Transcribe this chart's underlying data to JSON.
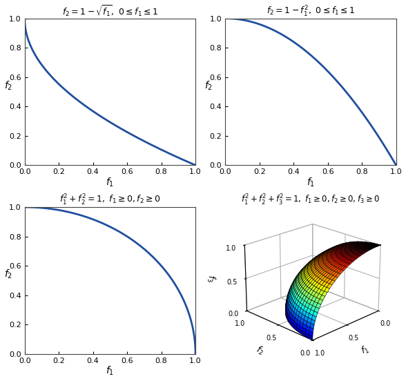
{
  "title1": "$f_2 = 1 - \\sqrt{f_1},\\ 0 \\leq f_1 \\leq 1$",
  "title2": "$f_2 = 1 - f_1^2,\\ 0 \\leq f_1 \\leq 1$",
  "title3": "$f_1^2 + f_2^2 = 1,\\ f_1 \\geq 0, f_2 \\geq 0$",
  "title4": "$f_1^2 + f_2^2 + f_3^2 = 1,\\ f_1 \\geq 0, f_2 \\geq 0, f_3 \\geq 0$",
  "xlabel": "$f_1$",
  "ylabel": "$f_2$",
  "zlabel": "$f_3$",
  "line_color": "#1f4e9e",
  "line_width": 2.0,
  "background_color": "#ffffff",
  "xlim": [
    0,
    1
  ],
  "ylim": [
    0,
    1
  ],
  "tick_values_2d": [
    0,
    0.2,
    0.4,
    0.6,
    0.8,
    1
  ],
  "n_points": 500,
  "n_surf": 30,
  "view_elev": 22,
  "view_azim": 225
}
